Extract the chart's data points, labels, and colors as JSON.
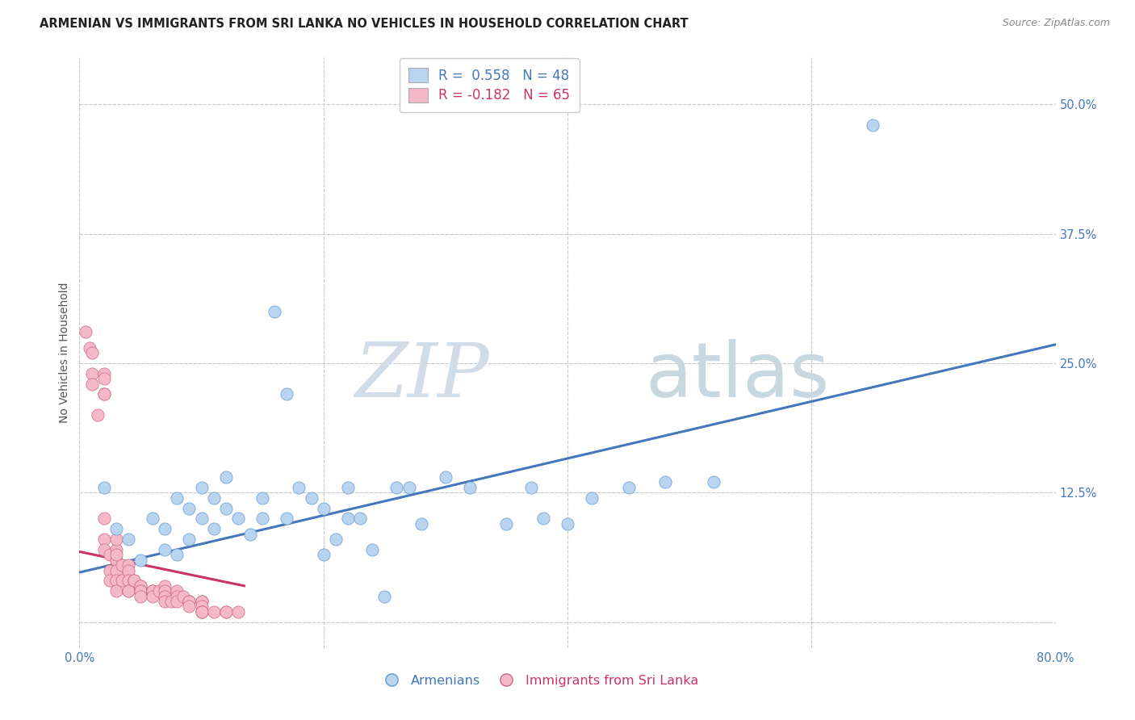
{
  "title": "ARMENIAN VS IMMIGRANTS FROM SRI LANKA NO VEHICLES IN HOUSEHOLD CORRELATION CHART",
  "source": "Source: ZipAtlas.com",
  "ylabel": "No Vehicles in Household",
  "background_color": "#ffffff",
  "grid_color": "#c8c8c8",
  "watermark_zip": "ZIP",
  "watermark_atlas": "atlas",
  "legend_r1": "R =  0.558   N = 48",
  "legend_r2": "R = -0.182   N = 65",
  "armenian_color": "#b8d4f0",
  "srilanka_color": "#f5b8c8",
  "armenian_edge_color": "#6699cc",
  "srilanka_edge_color": "#cc6688",
  "trendline_armenian_color": "#4477bb",
  "trendline_srilanka_color": "#cc3366",
  "xlim": [
    0.0,
    0.8
  ],
  "ylim": [
    -0.025,
    0.545
  ],
  "yticks": [
    0.0,
    0.125,
    0.25,
    0.375,
    0.5
  ],
  "ytick_labels": [
    "",
    "12.5%",
    "25.0%",
    "37.5%",
    "50.0%"
  ],
  "xticks": [
    0.0,
    0.2,
    0.4,
    0.6,
    0.8
  ],
  "xtick_labels": [
    "0.0%",
    "",
    "",
    "",
    "80.0%"
  ],
  "armenian_x": [
    0.02,
    0.03,
    0.04,
    0.05,
    0.06,
    0.07,
    0.07,
    0.08,
    0.08,
    0.09,
    0.09,
    0.1,
    0.1,
    0.11,
    0.11,
    0.12,
    0.12,
    0.13,
    0.14,
    0.15,
    0.15,
    0.16,
    0.17,
    0.17,
    0.18,
    0.19,
    0.2,
    0.2,
    0.21,
    0.22,
    0.22,
    0.23,
    0.24,
    0.25,
    0.26,
    0.27,
    0.28,
    0.3,
    0.32,
    0.35,
    0.37,
    0.38,
    0.4,
    0.42,
    0.45,
    0.48,
    0.52,
    0.65
  ],
  "armenian_y": [
    0.13,
    0.09,
    0.08,
    0.06,
    0.1,
    0.07,
    0.09,
    0.065,
    0.12,
    0.11,
    0.08,
    0.1,
    0.13,
    0.09,
    0.12,
    0.11,
    0.14,
    0.1,
    0.085,
    0.1,
    0.12,
    0.3,
    0.22,
    0.1,
    0.13,
    0.12,
    0.065,
    0.11,
    0.08,
    0.1,
    0.13,
    0.1,
    0.07,
    0.025,
    0.13,
    0.13,
    0.095,
    0.14,
    0.13,
    0.095,
    0.13,
    0.1,
    0.095,
    0.12,
    0.13,
    0.135,
    0.135,
    0.48
  ],
  "srilanka_x": [
    0.005,
    0.008,
    0.01,
    0.01,
    0.01,
    0.015,
    0.02,
    0.02,
    0.02,
    0.02,
    0.02,
    0.02,
    0.02,
    0.025,
    0.025,
    0.025,
    0.03,
    0.03,
    0.03,
    0.03,
    0.03,
    0.03,
    0.03,
    0.035,
    0.035,
    0.04,
    0.04,
    0.04,
    0.04,
    0.04,
    0.045,
    0.045,
    0.05,
    0.05,
    0.05,
    0.05,
    0.05,
    0.06,
    0.06,
    0.06,
    0.06,
    0.065,
    0.07,
    0.07,
    0.07,
    0.07,
    0.075,
    0.08,
    0.08,
    0.08,
    0.085,
    0.09,
    0.09,
    0.09,
    0.09,
    0.1,
    0.1,
    0.1,
    0.1,
    0.1,
    0.1,
    0.11,
    0.12,
    0.12,
    0.13
  ],
  "srilanka_y": [
    0.28,
    0.265,
    0.26,
    0.24,
    0.23,
    0.2,
    0.22,
    0.24,
    0.235,
    0.22,
    0.1,
    0.08,
    0.07,
    0.065,
    0.05,
    0.04,
    0.06,
    0.07,
    0.08,
    0.065,
    0.05,
    0.04,
    0.03,
    0.055,
    0.04,
    0.055,
    0.05,
    0.04,
    0.03,
    0.03,
    0.04,
    0.04,
    0.035,
    0.035,
    0.03,
    0.03,
    0.025,
    0.03,
    0.03,
    0.03,
    0.025,
    0.03,
    0.035,
    0.03,
    0.025,
    0.02,
    0.02,
    0.03,
    0.025,
    0.02,
    0.025,
    0.02,
    0.02,
    0.02,
    0.015,
    0.02,
    0.02,
    0.015,
    0.01,
    0.01,
    0.01,
    0.01,
    0.01,
    0.01,
    0.01
  ],
  "armenian_trend_x": [
    0.0,
    0.8
  ],
  "armenian_trend_y": [
    0.048,
    0.268
  ],
  "srilanka_trend_x": [
    0.0,
    0.135
  ],
  "srilanka_trend_y": [
    0.068,
    0.035
  ]
}
